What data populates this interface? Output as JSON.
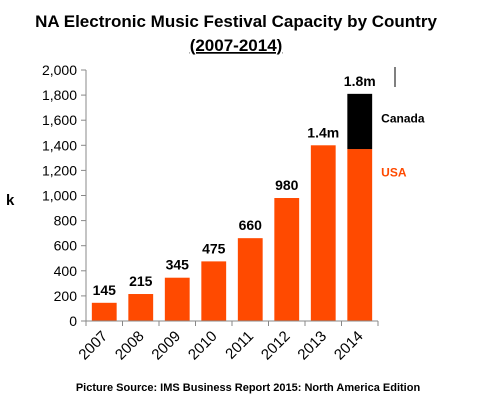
{
  "chart_data": {
    "type": "bar",
    "title": "NA Electronic Music Festival Capacity by Country",
    "subtitle": "(2007-2014)",
    "ylabel": "k",
    "xlabel": "",
    "categories": [
      "2007",
      "2008",
      "2009",
      "2010",
      "2011",
      "2012",
      "2013",
      "2014"
    ],
    "series": [
      {
        "name": "USA",
        "values": [
          145,
          215,
          345,
          475,
          660,
          980,
          1400,
          1370
        ],
        "color": "#ff4a00"
      },
      {
        "name": "Canada",
        "values": [
          0,
          0,
          0,
          0,
          0,
          0,
          0,
          440
        ],
        "color": "#000000"
      }
    ],
    "data_labels": [
      "145",
      "215",
      "345",
      "475",
      "660",
      "980",
      "1.4m",
      "1.8m"
    ],
    "ylim": [
      0,
      2000
    ],
    "yticks": [
      "0",
      "200",
      "400",
      "600",
      "800",
      "1,000",
      "1,200",
      "1,400",
      "1,600",
      "1,800",
      "2,000"
    ],
    "grid": false,
    "legend_placement": "right of last bar"
  },
  "source_text": "Picture Source: IMS Business Report 2015: North America Edition"
}
